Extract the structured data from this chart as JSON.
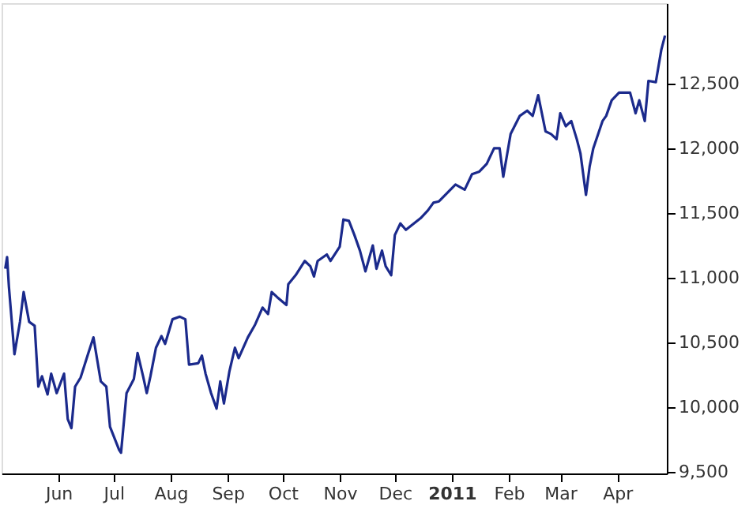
{
  "chart_data": {
    "type": "line",
    "x": [
      "2010-05-03",
      "2010-05-04",
      "2010-05-05",
      "2010-05-08",
      "2010-05-11",
      "2010-05-13",
      "2010-05-16",
      "2010-05-19",
      "2010-05-21",
      "2010-05-23",
      "2010-05-26",
      "2010-05-28",
      "2010-05-31",
      "2010-06-04",
      "2010-06-06",
      "2010-06-08",
      "2010-06-10",
      "2010-06-13",
      "2010-06-17",
      "2010-06-20",
      "2010-06-24",
      "2010-06-27",
      "2010-06-29",
      "2010-07-04",
      "2010-07-05",
      "2010-07-08",
      "2010-07-12",
      "2010-07-14",
      "2010-07-17",
      "2010-07-19",
      "2010-07-21",
      "2010-07-24",
      "2010-07-27",
      "2010-07-29",
      "2010-08-02",
      "2010-08-06",
      "2010-08-09",
      "2010-08-11",
      "2010-08-16",
      "2010-08-18",
      "2010-08-20",
      "2010-08-23",
      "2010-08-26",
      "2010-08-28",
      "2010-08-30",
      "2010-09-02",
      "2010-09-05",
      "2010-09-07",
      "2010-09-12",
      "2010-09-16",
      "2010-09-20",
      "2010-09-23",
      "2010-09-25",
      "2010-09-28",
      "2010-10-03",
      "2010-10-04",
      "2010-10-08",
      "2010-10-13",
      "2010-10-16",
      "2010-10-18",
      "2010-10-20",
      "2010-10-25",
      "2010-10-27",
      "2010-11-01",
      "2010-11-03",
      "2010-11-06",
      "2010-11-09",
      "2010-11-12",
      "2010-11-15",
      "2010-11-19",
      "2010-11-21",
      "2010-11-24",
      "2010-11-26",
      "2010-11-29",
      "2010-12-01",
      "2010-12-04",
      "2010-12-07",
      "2010-12-15",
      "2010-12-19",
      "2010-12-22",
      "2010-12-25",
      "2011-01-03",
      "2011-01-08",
      "2011-01-12",
      "2011-01-16",
      "2011-01-20",
      "2011-01-24",
      "2011-01-27",
      "2011-01-29",
      "2011-02-02",
      "2011-02-07",
      "2011-02-11",
      "2011-02-14",
      "2011-02-17",
      "2011-02-21",
      "2011-02-24",
      "2011-02-27",
      "2011-03-01",
      "2011-03-04",
      "2011-03-07",
      "2011-03-10",
      "2011-03-12",
      "2011-03-15",
      "2011-03-17",
      "2011-03-19",
      "2011-03-24",
      "2011-03-26",
      "2011-03-29",
      "2011-04-02",
      "2011-04-08",
      "2011-04-11",
      "2011-04-13",
      "2011-04-16",
      "2011-04-18",
      "2011-04-22",
      "2011-04-25",
      "2011-04-27"
    ],
    "series": [
      {
        "color": "#1b2a8c",
        "values": [
          11070,
          11160,
          10930,
          10410,
          10660,
          10890,
          10660,
          10630,
          10160,
          10240,
          10100,
          10260,
          10110,
          10260,
          9910,
          9840,
          10160,
          10230,
          10410,
          10540,
          10200,
          10160,
          9850,
          9670,
          9650,
          10110,
          10220,
          10420,
          10240,
          10110,
          10240,
          10460,
          10550,
          10490,
          10680,
          10700,
          10680,
          10330,
          10340,
          10400,
          10260,
          10110,
          9990,
          10200,
          10030,
          10280,
          10460,
          10380,
          10540,
          10640,
          10770,
          10720,
          10890,
          10850,
          10790,
          10950,
          11020,
          11130,
          11090,
          11010,
          11130,
          11180,
          11130,
          11240,
          11450,
          11440,
          11330,
          11210,
          11050,
          11250,
          11070,
          11210,
          11090,
          11020,
          11330,
          11420,
          11370,
          11460,
          11520,
          11580,
          11590,
          11720,
          11680,
          11800,
          11820,
          11880,
          12000,
          12000,
          11780,
          12110,
          12250,
          12290,
          12250,
          12410,
          12130,
          12110,
          12070,
          12270,
          12170,
          12210,
          12070,
          11960,
          11640,
          11860,
          12000,
          12210,
          12250,
          12370,
          12430,
          12430,
          12270,
          12370,
          12210,
          12520,
          12510,
          12760,
          12870
        ]
      }
    ],
    "xlim": [
      "2010-05-01",
      "2011-04-28"
    ],
    "xticks": [
      {
        "value": "2010-06-01",
        "label": "Jun"
      },
      {
        "value": "2010-07-01",
        "label": "Jul"
      },
      {
        "value": "2010-08-01",
        "label": "Aug"
      },
      {
        "value": "2010-09-01",
        "label": "Sep"
      },
      {
        "value": "2010-10-01",
        "label": "Oct"
      },
      {
        "value": "2010-11-01",
        "label": "Nov"
      },
      {
        "value": "2010-12-01",
        "label": "Dec"
      },
      {
        "value": "2011-01-01",
        "label": "2011"
      },
      {
        "value": "2011-02-01",
        "label": "Feb"
      },
      {
        "value": "2011-03-01",
        "label": "Mar"
      },
      {
        "value": "2011-04-01",
        "label": "Apr"
      }
    ],
    "ylim": [
      9490,
      13120
    ],
    "yticks": [
      {
        "value": 9500,
        "label": "9,500"
      },
      {
        "value": 10000,
        "label": "10,000"
      },
      {
        "value": 10500,
        "label": "10,500"
      },
      {
        "value": 11000,
        "label": "11,000"
      },
      {
        "value": 11500,
        "label": "11,500"
      },
      {
        "value": 12000,
        "label": "12,000"
      },
      {
        "value": 12500,
        "label": "12,500"
      }
    ],
    "grid": false,
    "marker": "none",
    "line_style": "solid"
  }
}
